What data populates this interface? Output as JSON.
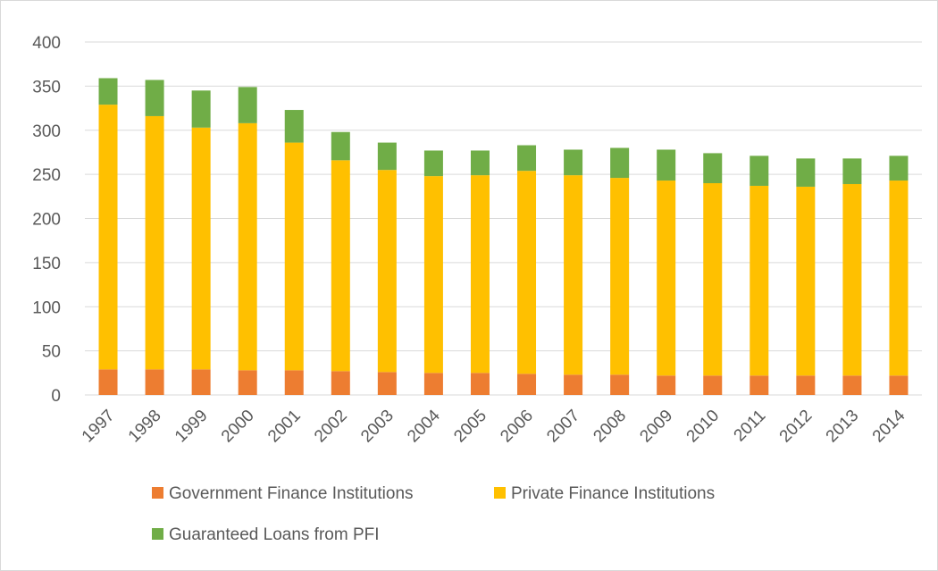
{
  "chart_data": {
    "type": "bar",
    "stacked": true,
    "title": "",
    "xlabel": "",
    "ylabel": "",
    "ylim": [
      0,
      400
    ],
    "yticks": [
      0,
      50,
      100,
      150,
      200,
      250,
      300,
      350,
      400
    ],
    "grid": true,
    "legend_position": "bottom",
    "categories": [
      "1997",
      "1998",
      "1999",
      "2000",
      "2001",
      "2002",
      "2003",
      "2004",
      "2005",
      "2006",
      "2007",
      "2008",
      "2009",
      "2010",
      "2011",
      "2012",
      "2013",
      "2014"
    ],
    "series": [
      {
        "name": "Government Finance Institutions",
        "color": "#ed7d31",
        "values": [
          29,
          29,
          29,
          28,
          28,
          27,
          26,
          25,
          25,
          24,
          23,
          23,
          22,
          22,
          22,
          22,
          22,
          22
        ]
      },
      {
        "name": "Private Finance Institutions",
        "color": "#ffc000",
        "values": [
          300,
          287,
          274,
          280,
          258,
          239,
          229,
          223,
          224,
          230,
          226,
          223,
          221,
          218,
          215,
          214,
          217,
          221
        ]
      },
      {
        "name": "Guaranteed Loans from PFI",
        "color": "#70ad47",
        "values": [
          30,
          41,
          42,
          41,
          37,
          32,
          31,
          29,
          28,
          29,
          29,
          34,
          35,
          34,
          34,
          32,
          29,
          28
        ]
      }
    ]
  }
}
